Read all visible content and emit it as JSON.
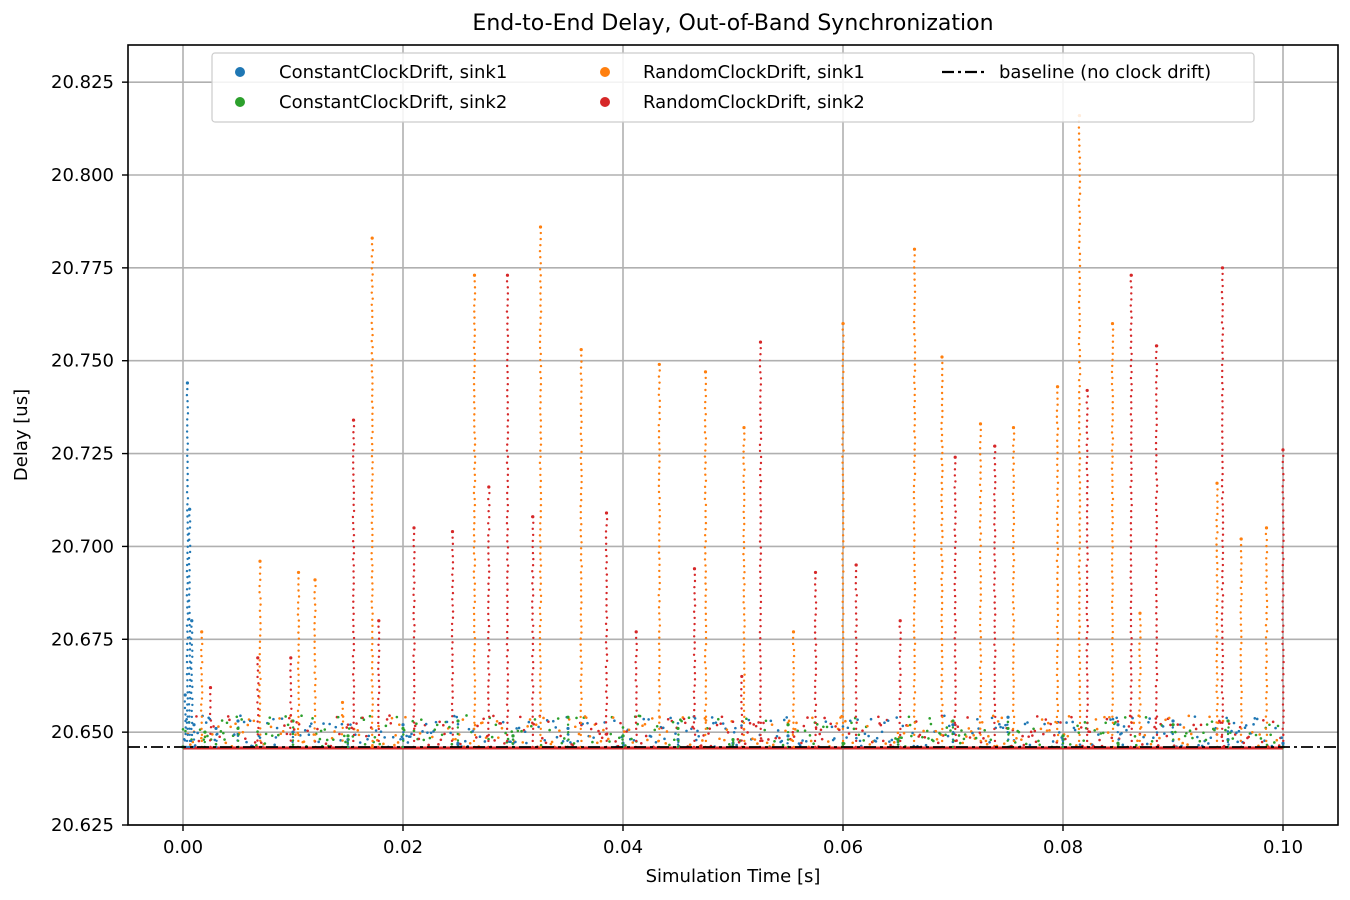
{
  "chart_data": {
    "type": "scatter",
    "title": "End-to-End Delay, Out-of-Band Synchronization",
    "xlabel": "Simulation Time [s]",
    "ylabel": "Delay [us]",
    "xlim": [
      -0.005,
      0.105
    ],
    "ylim": [
      20.625,
      20.835
    ],
    "xticks": [
      "0.00",
      "0.02",
      "0.04",
      "0.06",
      "0.08",
      "0.10"
    ],
    "yticks": [
      "20.625",
      "20.650",
      "20.675",
      "20.700",
      "20.725",
      "20.750",
      "20.775",
      "20.800",
      "20.825"
    ],
    "grid": true,
    "legend_placement": "upper-center",
    "series": [
      {
        "name": "ConstantClockDrift, sink1",
        "color": "#1f77b4",
        "marker": "dot",
        "x": [
          0.0,
          0.0002,
          0.0004,
          0.0006,
          0.0008,
          0.001,
          0.003,
          0.005,
          0.01,
          0.015,
          0.02,
          0.025,
          0.03,
          0.035,
          0.04,
          0.045,
          0.05,
          0.055,
          0.06,
          0.065,
          0.07,
          0.075,
          0.08,
          0.085,
          0.09,
          0.095,
          0.1
        ],
        "y": [
          20.646,
          20.66,
          20.744,
          20.71,
          20.68,
          20.652,
          20.651,
          20.653,
          20.65,
          20.648,
          20.652,
          20.647,
          20.649,
          20.651,
          20.647,
          20.648,
          20.647,
          20.649,
          20.646,
          20.648,
          20.652,
          20.654,
          20.648,
          20.652,
          20.653,
          20.648,
          20.647
        ]
      },
      {
        "name": "ConstantClockDrift, sink2",
        "color": "#2ca02c",
        "marker": "dot",
        "x": [
          0.0,
          0.002,
          0.005,
          0.01,
          0.015,
          0.02,
          0.025,
          0.03,
          0.035,
          0.04,
          0.045,
          0.05,
          0.055,
          0.06,
          0.065,
          0.07,
          0.075,
          0.08,
          0.085,
          0.09,
          0.095,
          0.1
        ],
        "y": [
          20.646,
          20.65,
          20.651,
          20.653,
          20.649,
          20.651,
          20.653,
          20.649,
          20.654,
          20.649,
          20.651,
          20.648,
          20.652,
          20.647,
          20.648,
          20.653,
          20.651,
          20.649,
          20.647,
          20.652,
          20.653,
          20.646
        ]
      },
      {
        "name": "RandomClockDrift, sink1",
        "color": "#ff7f0e",
        "marker": "dot",
        "x": [
          0.0017,
          0.007,
          0.0105,
          0.012,
          0.0145,
          0.0172,
          0.0265,
          0.0325,
          0.0362,
          0.0433,
          0.0475,
          0.051,
          0.0555,
          0.06,
          0.0665,
          0.069,
          0.0725,
          0.0755,
          0.0795,
          0.0815,
          0.0845,
          0.087,
          0.094,
          0.0962,
          0.0985
        ],
        "y": [
          20.677,
          20.696,
          20.693,
          20.691,
          20.658,
          20.783,
          20.773,
          20.786,
          20.753,
          20.749,
          20.747,
          20.732,
          20.677,
          20.76,
          20.78,
          20.751,
          20.733,
          20.732,
          20.743,
          20.816,
          20.76,
          20.682,
          20.717,
          20.702,
          20.705
        ]
      },
      {
        "name": "RandomClockDrift, sink2",
        "color": "#d62728",
        "marker": "dot",
        "x": [
          0.0025,
          0.0068,
          0.0098,
          0.0155,
          0.0178,
          0.021,
          0.0245,
          0.0278,
          0.0295,
          0.0318,
          0.0385,
          0.0412,
          0.0465,
          0.0508,
          0.0525,
          0.0575,
          0.0612,
          0.0652,
          0.0702,
          0.0738,
          0.0822,
          0.0862,
          0.0885,
          0.0945,
          0.1
        ],
        "y": [
          20.662,
          20.67,
          20.67,
          20.734,
          20.68,
          20.705,
          20.704,
          20.716,
          20.773,
          20.708,
          20.709,
          20.677,
          20.694,
          20.665,
          20.755,
          20.693,
          20.695,
          20.68,
          20.724,
          20.727,
          20.742,
          20.773,
          20.754,
          20.775,
          20.726
        ]
      }
    ],
    "baseline": {
      "name": "baseline (no clock drift)",
      "y": 20.646,
      "color": "#000000",
      "linestyle": "dash-dot"
    }
  }
}
